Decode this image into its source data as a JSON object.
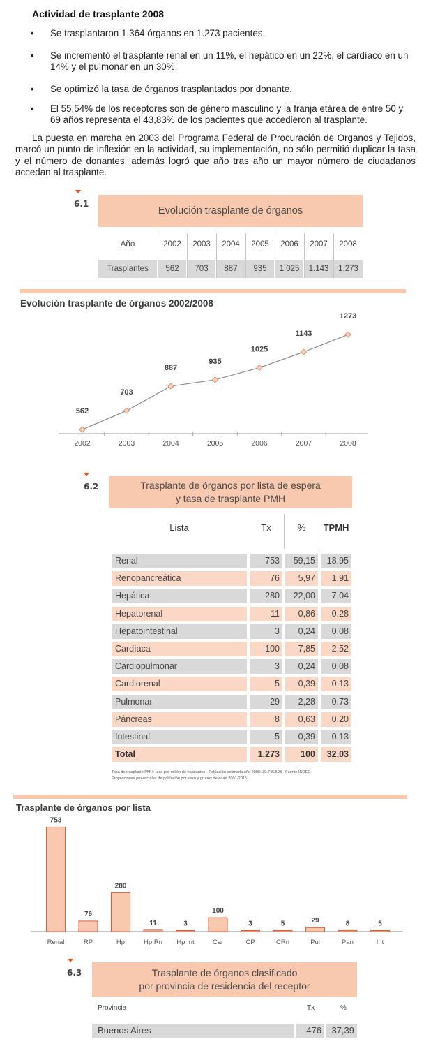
{
  "intro": {
    "title": "Actividad de trasplante 2008",
    "bullet_symbol": "•",
    "bullets": [
      "Se trasplantaron 1.364 órganos en 1.273 pacientes.",
      "Se incrementó el trasplante renal en un 11%, el hepático en un 22%, el cardíaco en un 14% y el pulmonar en un 30%.",
      "Se optimizó la tasa de órganos trasplantados por donante.",
      "El 55,54% de los receptores son de género masculino y la franja etárea de entre 50 y 69 años representa el 43,83% de los pacientes que accedieron al trasplante."
    ],
    "paragraph": "La puesta en marcha en 2003 del Programa Federal de Procuración de Organos y Tejidos, marcó un punto de inflexión en la actividad, su implementación, no sólo permitió duplicar la tasa y el número de donantes, además logró que año tras año un mayor número de ciudadanos accedan al trasplante."
  },
  "table_6_1": {
    "number": "6.1",
    "title": "Evolución trasplante de órganos",
    "head_label": "Año",
    "row_label": "Trasplantes",
    "years": [
      "2002",
      "2003",
      "2004",
      "2005",
      "2006",
      "2007",
      "2008"
    ],
    "values": [
      "562",
      "703",
      "887",
      "935",
      "1.025",
      "1.143",
      "1.273"
    ]
  },
  "chart_data": [
    {
      "type": "line",
      "title": "Evolución trasplante de órganos 2002/2008",
      "x": [
        "2002",
        "2003",
        "2004",
        "2005",
        "2006",
        "2007",
        "2008"
      ],
      "series": [
        {
          "values": [
            562,
            703,
            887,
            935,
            1025,
            1143,
            1273
          ]
        }
      ],
      "data_labels": [
        "562",
        "703",
        "887",
        "935",
        "1025",
        "1143",
        "1273"
      ],
      "ylim": [
        500,
        1300
      ],
      "marker": "diamond",
      "colors": {
        "line": "#888888",
        "marker": "#e8906a"
      }
    },
    {
      "type": "bar",
      "title": "Trasplante de órganos por lista",
      "categories": [
        "Renal",
        "RP",
        "Hp",
        "Hp Rn",
        "Hp Int",
        "Car",
        "CP",
        "CRn",
        "Pul",
        "Pan",
        "Int"
      ],
      "values": [
        753,
        76,
        280,
        11,
        3,
        100,
        3,
        5,
        29,
        8,
        5
      ],
      "data_labels": [
        "753",
        "76",
        "280",
        "11",
        "3",
        "100",
        "3",
        "5",
        "29",
        "8",
        "5"
      ],
      "ylim": [
        0,
        760
      ],
      "colors": {
        "bar": "#f8c9ae",
        "stroke": "#d8603a"
      }
    }
  ],
  "table_6_2": {
    "number": "6.2",
    "title_line1": "Trasplante de órganos por lista de espera",
    "title_line2": "y tasa de trasplante PMH",
    "headers": {
      "lista": "Lista",
      "tx": "Tx",
      "pct": "%",
      "tpmh": "TPMH"
    },
    "rows": [
      {
        "name": "Renal",
        "tx": "753",
        "pct": "59,15",
        "tpmh": "18,95"
      },
      {
        "name": "Renopancreática",
        "tx": "76",
        "pct": "5,97",
        "tpmh": "1,91"
      },
      {
        "name": "Hepática",
        "tx": "280",
        "pct": "22,00",
        "tpmh": "7,04"
      },
      {
        "name": "Hepatorenal",
        "tx": "11",
        "pct": "0,86",
        "tpmh": "0,28"
      },
      {
        "name": "Hepatointestinal",
        "tx": "3",
        "pct": "0,24",
        "tpmh": "0,08"
      },
      {
        "name": "Cardíaca",
        "tx": "100",
        "pct": "7,85",
        "tpmh": "2,52"
      },
      {
        "name": "Cardiopulmonar",
        "tx": "3",
        "pct": "0,24",
        "tpmh": "0,08"
      },
      {
        "name": "Cardiorenal",
        "tx": "5",
        "pct": "0,39",
        "tpmh": "0,13"
      },
      {
        "name": "Pulmonar",
        "tx": "29",
        "pct": "2,28",
        "tpmh": "0,73"
      },
      {
        "name": "Páncreas",
        "tx": "8",
        "pct": "0,63",
        "tpmh": "0,20"
      },
      {
        "name": "Intestinal",
        "tx": "5",
        "pct": "0,39",
        "tpmh": "0,13"
      }
    ],
    "total": {
      "name": "Total",
      "tx": "1.273",
      "pct": "100",
      "tpmh": "32,03"
    },
    "note_line1": "Tasa de trasplante PMH: tasa por millón de habitantes - Población estimada año 2008: 39.745.593 - Fuente INDEC",
    "note_line2": "Proyecciones provinciales de población por sexo y grupos de edad 2001-2015"
  },
  "table_6_3": {
    "number": "6.3",
    "title_line1": "Trasplante de órganos clasificado",
    "title_line2": "por provincia de residencia del receptor",
    "headers": {
      "provincia": "Provincia",
      "tx": "Tx",
      "pct": "%"
    },
    "rows": [
      {
        "name": "Buenos Aires",
        "tx": "476",
        "pct": "37,39"
      }
    ]
  }
}
